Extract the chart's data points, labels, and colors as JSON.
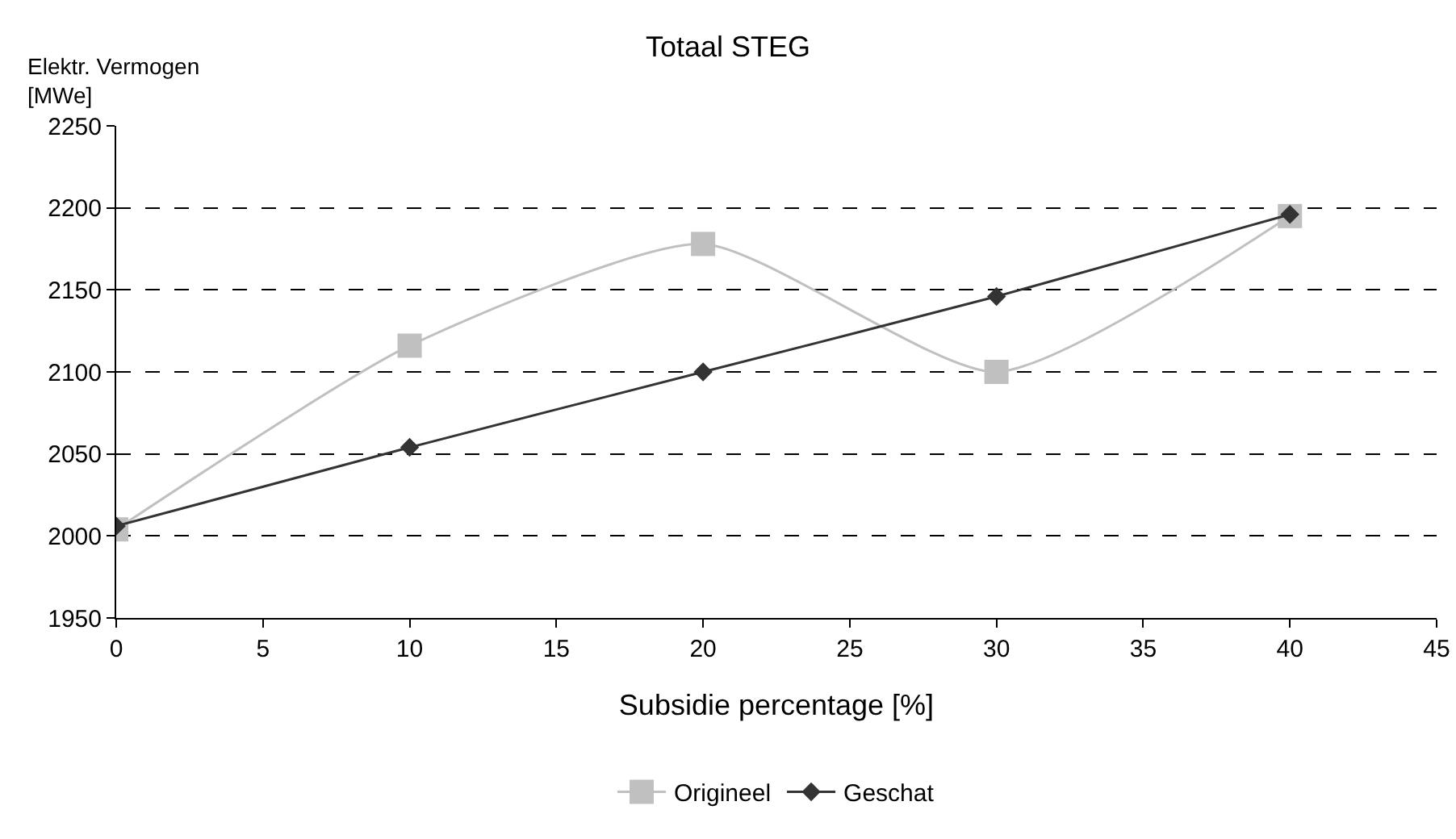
{
  "chart_data": {
    "type": "line",
    "title": "Totaal STEG",
    "xlabel": "Subsidie percentage [%]",
    "ylabel": "Elektr. Vermogen\n[MWe]",
    "x": [
      0,
      10,
      20,
      30,
      40
    ],
    "series": [
      {
        "name": "Origineel",
        "color": "#c0c0c0",
        "marker": "square",
        "values": [
          2004,
          2116,
          2178,
          2100,
          2195
        ]
      },
      {
        "name": "Geschat",
        "color": "#333333",
        "marker": "diamond",
        "values": [
          2006,
          2054,
          2100,
          2146,
          2196
        ]
      }
    ],
    "xlim": [
      0,
      45
    ],
    "xticks": [
      0,
      5,
      10,
      15,
      20,
      25,
      30,
      35,
      40,
      45
    ],
    "ylim": [
      1950,
      2250
    ],
    "yticks": [
      1950,
      2000,
      2050,
      2100,
      2150,
      2200,
      2250
    ],
    "grid": "y",
    "legend": "bottom"
  }
}
